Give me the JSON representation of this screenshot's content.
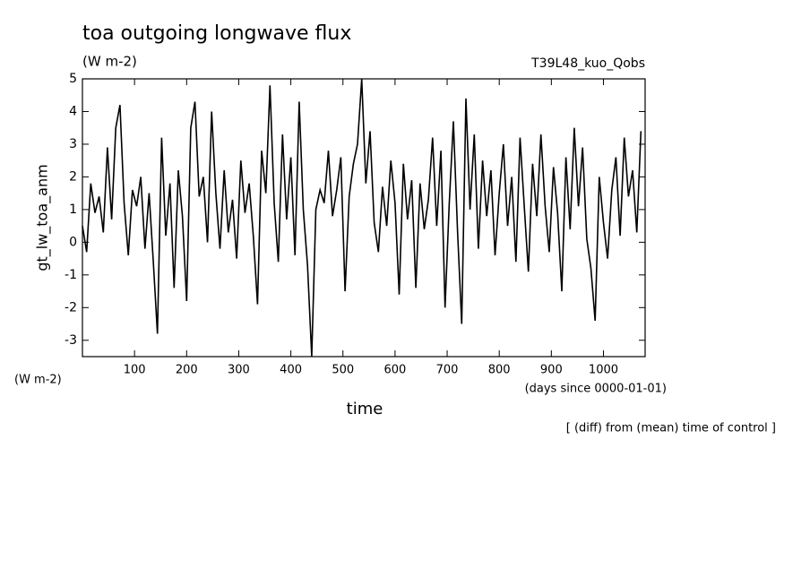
{
  "chart_data": {
    "type": "line",
    "title": "toa outgoing longwave flux",
    "units": "(W m-2)",
    "run_label": "T39L48_kuo_Qobs",
    "ylabel": "gt_lw_toa_anm",
    "y_units": "(W m-2)",
    "xlabel": "time",
    "x_units": "(days since 0000-01-01)",
    "footnote": "[ (diff) from (mean) time of control ]",
    "xlim": [
      0,
      1080
    ],
    "ylim": [
      -3.5,
      5
    ],
    "xticks": [
      100,
      200,
      300,
      400,
      500,
      600,
      700,
      800,
      900,
      1000
    ],
    "yticks": [
      -3,
      -2,
      -1,
      0,
      1,
      2,
      3,
      4,
      5
    ],
    "color": "#000000",
    "x": [
      0,
      8,
      16,
      24,
      32,
      40,
      48,
      56,
      64,
      72,
      80,
      88,
      96,
      104,
      112,
      120,
      128,
      136,
      144,
      152,
      160,
      168,
      176,
      184,
      192,
      200,
      208,
      216,
      224,
      232,
      240,
      248,
      256,
      264,
      272,
      280,
      288,
      296,
      304,
      312,
      320,
      328,
      336,
      344,
      352,
      360,
      368,
      376,
      384,
      392,
      400,
      408,
      416,
      424,
      432,
      440,
      448,
      456,
      464,
      472,
      480,
      488,
      496,
      504,
      512,
      520,
      528,
      536,
      544,
      552,
      560,
      568,
      576,
      584,
      592,
      600,
      608,
      616,
      624,
      632,
      640,
      648,
      656,
      664,
      672,
      680,
      688,
      696,
      704,
      712,
      720,
      728,
      736,
      744,
      752,
      760,
      768,
      776,
      784,
      792,
      800,
      808,
      816,
      824,
      832,
      840,
      848,
      856,
      864,
      872,
      880,
      888,
      896,
      904,
      912,
      920,
      928,
      936,
      944,
      952,
      960,
      968,
      976,
      984,
      992,
      1000,
      1008,
      1016,
      1024,
      1032,
      1040,
      1048,
      1056,
      1064,
      1072
    ],
    "values": [
      0.5,
      -0.3,
      1.8,
      0.9,
      1.4,
      0.3,
      2.9,
      0.7,
      3.5,
      4.2,
      1.2,
      -0.4,
      1.6,
      1.1,
      2.0,
      -0.2,
      1.5,
      -0.6,
      -2.8,
      3.2,
      0.2,
      1.8,
      -1.4,
      2.2,
      0.8,
      -1.8,
      3.5,
      4.3,
      1.4,
      2.0,
      0.0,
      4.0,
      1.5,
      -0.2,
      2.2,
      0.3,
      1.3,
      -0.5,
      2.5,
      0.9,
      1.8,
      0.2,
      -1.9,
      2.8,
      1.5,
      4.8,
      1.2,
      -0.6,
      3.3,
      0.7,
      2.6,
      -0.4,
      4.3,
      1.0,
      -0.7,
      -3.5,
      1.0,
      1.6,
      1.2,
      2.8,
      0.8,
      1.6,
      2.6,
      -1.5,
      1.4,
      2.4,
      3.0,
      5.0,
      1.8,
      3.4,
      0.6,
      -0.3,
      1.7,
      0.5,
      2.5,
      1.2,
      -1.6,
      2.4,
      0.7,
      1.9,
      -1.4,
      1.8,
      0.4,
      1.3,
      3.2,
      0.5,
      2.8,
      -2.0,
      1.2,
      3.7,
      0.3,
      -2.5,
      4.4,
      1.0,
      3.3,
      -0.2,
      2.5,
      0.8,
      2.2,
      -0.4,
      1.5,
      3.0,
      0.5,
      2.0,
      -0.6,
      3.2,
      1.1,
      -0.9,
      2.4,
      0.8,
      3.3,
      1.1,
      -0.3,
      2.3,
      0.9,
      -1.5,
      2.6,
      0.4,
      3.5,
      1.1,
      2.9,
      0.1,
      -0.8,
      -2.4,
      2.0,
      0.6,
      -0.5,
      1.6,
      2.6,
      0.2,
      3.2,
      1.4,
      2.2,
      0.3,
      3.4
    ]
  }
}
